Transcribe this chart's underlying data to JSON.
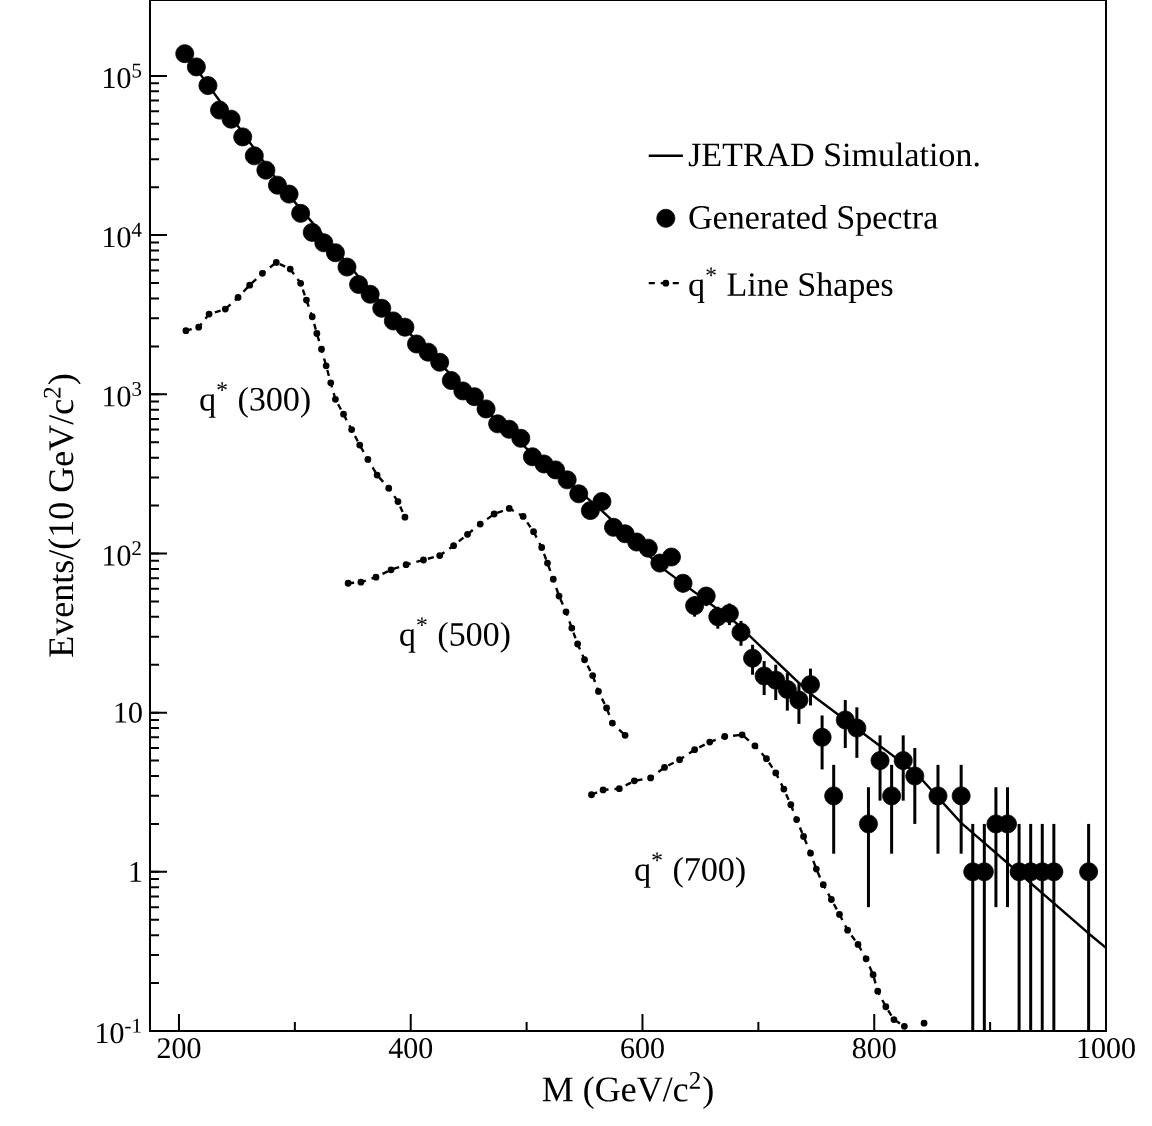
{
  "chart_data": {
    "type": "line",
    "xlabel": "M (GeV/c$^{2}$)",
    "ylabel": "Events/(10 GeV/c$^{2}$)",
    "log": "y",
    "legend": "top right",
    "xlim": [
      175,
      1000
    ],
    "ylim": [
      0.1,
      300000
    ],
    "xticks": [
      200,
      {
        "value": 300,
        "label": null
      },
      400,
      {
        "value": 500,
        "label": null
      },
      600,
      {
        "value": 700,
        "label": null
      },
      800,
      {
        "value": 900,
        "label": null
      },
      1000
    ],
    "yticks": [
      {
        "value": 0.1,
        "label": "10$^{-1}$"
      },
      1,
      10,
      {
        "value": 100,
        "label": "10$^{2}$"
      },
      {
        "value": 1000,
        "label": "10$^{3}$"
      },
      {
        "value": 10000,
        "label": "10$^{4}$"
      },
      {
        "value": 100000,
        "label": "10$^{5}$"
      }
    ],
    "annotations": [
      "q$^{*}$ (300)",
      "q$^{*}$ (500)",
      "q$^{*}$ (700)"
    ],
    "series": [
      {
        "name": "JETRAD Simulation.",
        "color": "#000000",
        "x": [
          205,
          290,
          387,
          420,
          450,
          480,
          510,
          540,
          560,
          592,
          615,
          680,
          744,
          836,
          875,
          985,
          1000
        ],
        "values": [
          140000,
          19600,
          2930,
          1720,
          1010,
          625,
          390,
          265,
          200,
          122,
          83,
          37,
          13.3,
          4.18,
          2.03,
          0.41,
          0.333
        ]
      },
      {
        "name": "Generated Spectra",
        "type": "scatter",
        "marker": "circle",
        "color": "#000000",
        "x": [
          205,
          215,
          225,
          235,
          245,
          255,
          265,
          275,
          285,
          295,
          305,
          315,
          325,
          335,
          345,
          355,
          365,
          375,
          385,
          395,
          405,
          415,
          425,
          435,
          445,
          455,
          465,
          475,
          485,
          495,
          505,
          515,
          525,
          535,
          545,
          555,
          565,
          575,
          585,
          595,
          605,
          615,
          625,
          635,
          645,
          655,
          665,
          675,
          685,
          695,
          705,
          715,
          725,
          735,
          745,
          755,
          765,
          775,
          785,
          795,
          805,
          815,
          825,
          835,
          855,
          875,
          885,
          895,
          905,
          915,
          925,
          935,
          945,
          955,
          985
        ],
        "values": [
          138000,
          114000,
          87000,
          61000,
          53500,
          41400,
          31500,
          25600,
          20600,
          18100,
          13700,
          10400,
          8950,
          7750,
          6300,
          4900,
          4250,
          3470,
          2890,
          2640,
          2070,
          1840,
          1590,
          1220,
          1050,
          966,
          809,
          652,
          603,
          529,
          405,
          365,
          335,
          290,
          237,
          186,
          212,
          146,
          133,
          118,
          108,
          87,
          95,
          65,
          47,
          54,
          40,
          42,
          32,
          22,
          17,
          16,
          14,
          12,
          15,
          7,
          3,
          9,
          8,
          2,
          5,
          3,
          5,
          4,
          3,
          3,
          1,
          1,
          2,
          2,
          1,
          1,
          1,
          1,
          1
        ],
        "errors": [
          null,
          null,
          null,
          null,
          null,
          null,
          null,
          null,
          null,
          null,
          null,
          null,
          null,
          null,
          null,
          null,
          null,
          null,
          null,
          null,
          null,
          null,
          null,
          null,
          null,
          null,
          null,
          null,
          null,
          null,
          null,
          null,
          null,
          null,
          null,
          null,
          null,
          null,
          null,
          null,
          null,
          null,
          9.7,
          8.1,
          6.9,
          7.3,
          6.3,
          6.5,
          5.7,
          4.7,
          4.1,
          4,
          3.7,
          3.5,
          3.9,
          2.6,
          1.7,
          3,
          2.8,
          1.4,
          2.2,
          1.7,
          2.2,
          2,
          1.7,
          1.7,
          [
            0.1,
            2
          ],
          [
            0.1,
            2
          ],
          1.4,
          1.4,
          [
            0.1,
            2
          ],
          [
            0.1,
            2
          ],
          [
            0.1,
            2
          ],
          [
            0.1,
            2
          ],
          [
            0.1,
            2
          ]
        ]
      },
      {
        "name": "q$^{*}$ Line Shapes",
        "type": "line",
        "line_style": "dashed",
        "marker": "circle",
        "color": "#000000",
        "x": [
          206,
          217,
          226,
          240,
          251,
          261,
          272,
          284,
          296,
          305,
          310,
          315,
          319,
          323,
          327,
          331,
          335,
          342,
          349,
          356,
          363,
          371,
          381,
          389,
          395
        ],
        "values": [
          2510,
          2640,
          3190,
          3430,
          4060,
          4850,
          5750,
          6740,
          6120,
          4980,
          3910,
          3070,
          2410,
          1920,
          1510,
          1180,
          930,
          750,
          600,
          480,
          390,
          311,
          257,
          212,
          169
        ]
      },
      {
        "type": "line",
        "line_style": "dashed",
        "marker": "circle",
        "color": "#000000",
        "x": [
          346,
          357,
          370,
          383,
          396,
          411,
          425,
          437,
          449,
          460,
          472,
          485,
          497,
          506,
          513,
          518,
          523,
          528,
          534,
          539,
          544,
          550,
          557,
          562,
          569,
          574,
          585
        ],
        "values": [
          65,
          66,
          71,
          79,
          85,
          91,
          97,
          112,
          132,
          153,
          177,
          192,
          171,
          137,
          109,
          87,
          69,
          54,
          43,
          34,
          27,
          21.5,
          17.1,
          13.6,
          10.7,
          8.6,
          7.2
        ]
      },
      {
        "type": "line",
        "line_style": "dashed",
        "marker": "circle",
        "color": "#000000",
        "x": [
          556,
          566,
          580,
          593,
          607,
          619,
          632,
          645,
          658,
          671,
          686,
          697,
          707,
          715,
          722,
          728,
          733,
          739,
          745,
          750,
          756,
          763,
          770,
          777,
          786,
          793,
          799,
          803,
          810,
          817,
          826,
          835,
          843
        ],
        "values": [
          3.05,
          3.27,
          3.33,
          3.73,
          3.89,
          4.53,
          5.06,
          5.85,
          6.53,
          7.08,
          7.26,
          6.19,
          5.14,
          4.18,
          3.31,
          2.64,
          2.13,
          1.67,
          1.31,
          1.04,
          0.83,
          0.67,
          0.54,
          0.43,
          0.35,
          0.284,
          0.226,
          0.178,
          0.142,
          0.118,
          0.107,
          null,
          0.112
        ]
      }
    ]
  }
}
